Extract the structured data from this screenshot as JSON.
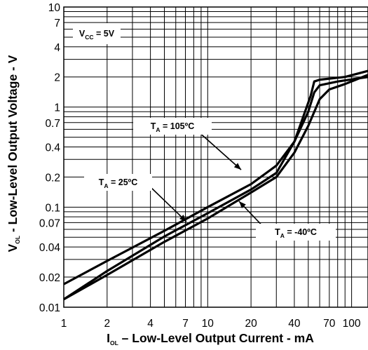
{
  "chart_data": {
    "type": "line",
    "x_scale": "log",
    "y_scale": "log",
    "xlim": [
      1,
      130
    ],
    "ylim": [
      0.01,
      10
    ],
    "x_ticks": [
      1,
      2,
      4,
      7,
      10,
      20,
      40,
      70,
      100
    ],
    "x_tick_labels": [
      "1",
      "2",
      "4",
      "7",
      "10",
      "20",
      "40",
      "70",
      "100"
    ],
    "y_ticks": [
      0.01,
      0.02,
      0.04,
      0.07,
      0.1,
      0.2,
      0.4,
      0.7,
      1,
      2,
      4,
      7,
      10
    ],
    "y_tick_labels": [
      "0.01",
      "0.02",
      "0.04",
      "0.07",
      "0.1",
      "0.2",
      "0.4",
      "0.7",
      "1",
      "2",
      "4",
      "7",
      "10"
    ],
    "xlabel": {
      "main": "I",
      "sub": "OL",
      "rest": " – Low-Level Output Current - mA"
    },
    "ylabel": {
      "main": "V",
      "sub": "OL",
      "rest": " - Low-Level Output Voltage - V"
    },
    "grid": true,
    "annotations": {
      "vcc": {
        "main": "V",
        "sub": "CC",
        "rest": " = 5V"
      },
      "t105": {
        "main": "T",
        "sub": "A",
        "rest": " = 105ºC"
      },
      "t25": {
        "main": "T",
        "sub": "A",
        "rest": " = 25ºC"
      },
      "tm40": {
        "main": "T",
        "sub": "A",
        "rest": " = -40ºC"
      }
    },
    "series": [
      {
        "points": [
          [
            1,
            0.017
          ],
          [
            2,
            0.029
          ],
          [
            5,
            0.058
          ],
          [
            10,
            0.1
          ],
          [
            20,
            0.17
          ],
          [
            30,
            0.26
          ],
          [
            40,
            0.45
          ],
          [
            50,
            0.9
          ],
          [
            55,
            1.4
          ],
          [
            60,
            1.65
          ],
          [
            80,
            1.8
          ],
          [
            130,
            2.0
          ]
        ]
      },
      {
        "points": [
          [
            1,
            0.012
          ],
          [
            2,
            0.023
          ],
          [
            5,
            0.051
          ],
          [
            10,
            0.087
          ],
          [
            20,
            0.15
          ],
          [
            30,
            0.22
          ],
          [
            40,
            0.45
          ],
          [
            52,
            1.3
          ],
          [
            55,
            1.8
          ],
          [
            60,
            1.88
          ],
          [
            90,
            2.0
          ],
          [
            130,
            2.3
          ]
        ]
      },
      {
        "points": [
          [
            1,
            0.012
          ],
          [
            2,
            0.021
          ],
          [
            5,
            0.045
          ],
          [
            10,
            0.077
          ],
          [
            20,
            0.14
          ],
          [
            30,
            0.2
          ],
          [
            40,
            0.35
          ],
          [
            50,
            0.65
          ],
          [
            60,
            1.2
          ],
          [
            70,
            1.5
          ],
          [
            90,
            1.7
          ],
          [
            130,
            2.1
          ]
        ]
      }
    ]
  }
}
